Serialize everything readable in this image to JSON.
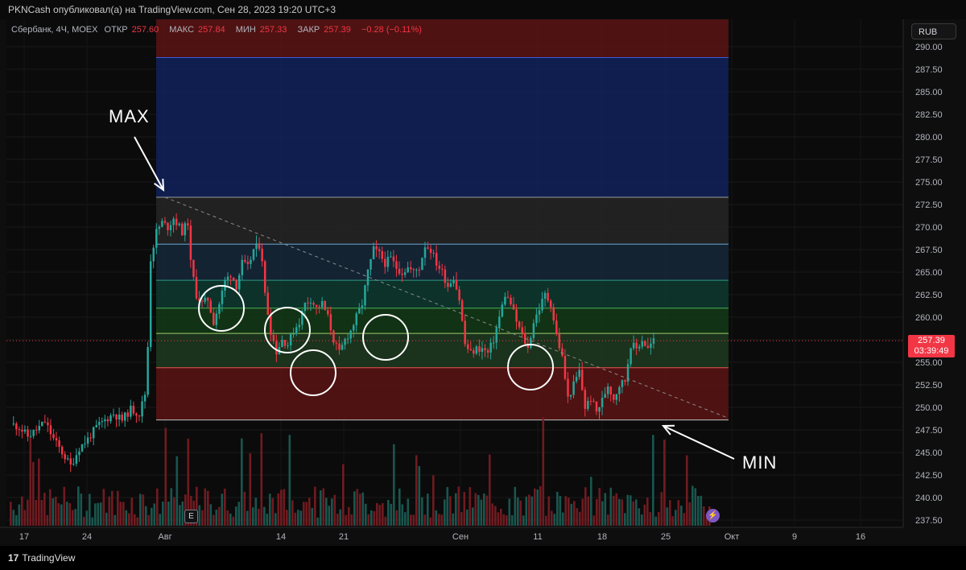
{
  "header": {
    "publisher_line": "PKNCash опубликовал(а) на TradingView.com, Сен 28, 2023 19:20 UTC+3"
  },
  "legend": {
    "symbol_line": "Сбербанк, 4Ч, MOEX",
    "open_label": "ОТКР",
    "open_value": "257.60",
    "high_label": "МАКС",
    "high_value": "257.84",
    "low_label": "МИН",
    "low_value": "257.33",
    "close_label": "ЗАКР",
    "close_value": "257.39",
    "change": "−0.28 (−0.11%)"
  },
  "price_axis": {
    "currency": "RUB",
    "last_price": "257.39",
    "countdown": "03:39:49"
  },
  "time_axis_badges": {
    "earnings": "E",
    "bolt": "⚡"
  },
  "annotations": {
    "max_label": "MAX",
    "min_label": "MIN"
  },
  "footer": {
    "brand": "TradingView",
    "logo_mark": "17"
  },
  "colors": {
    "up": "#26a69a",
    "down": "#f23645",
    "zone_top": "#5a1414",
    "zone_blue": "#10225a",
    "zone_gray": "#262626",
    "zone_steel": "#16283a",
    "zone_teal": "#0d3a30",
    "zone_green": "#143a18",
    "zone_olive": "#1e3a20",
    "zone_red": "#5a1414"
  },
  "chart_data": {
    "type": "candlestick",
    "symbol": "Сбербанк",
    "timeframe": "4Ч",
    "exchange": "MOEX",
    "y_ticks": [
      "290.00",
      "287.50",
      "285.00",
      "282.50",
      "280.00",
      "277.50",
      "275.00",
      "272.50",
      "270.00",
      "267.50",
      "265.00",
      "262.50",
      "260.00",
      "257.50",
      "255.00",
      "252.50",
      "250.00",
      "247.50",
      "245.00",
      "242.50",
      "240.00",
      "237.50"
    ],
    "ylim": [
      236.5,
      291.5
    ],
    "x_ticks": [
      "17",
      "24",
      "Авг",
      "14",
      "21",
      "Сен",
      "11",
      "18",
      "25",
      "Окт",
      "9",
      "16"
    ],
    "fib_levels": [
      288.8,
      273.3,
      268.1,
      264.1,
      261.0,
      258.2,
      254.4,
      248.6
    ],
    "max_price": 273.3,
    "min_price": 248.6,
    "close_path": [
      [
        0,
        248.2
      ],
      [
        3,
        247.8
      ],
      [
        6,
        246.8
      ],
      [
        9,
        247.5
      ],
      [
        12,
        248.4
      ],
      [
        15,
        246.5
      ],
      [
        18,
        245.0
      ],
      [
        21,
        243.5
      ],
      [
        24,
        245.5
      ],
      [
        27,
        246.5
      ],
      [
        30,
        247.8
      ],
      [
        33,
        248.6
      ],
      [
        36,
        249.3
      ],
      [
        39,
        248.6
      ],
      [
        42,
        249.8
      ],
      [
        45,
        249.3
      ],
      [
        47,
        251.5
      ],
      [
        48,
        256.8
      ],
      [
        49,
        266.5
      ],
      [
        51,
        269.5
      ],
      [
        53,
        270.5
      ],
      [
        55,
        270.0
      ],
      [
        57,
        271.0
      ],
      [
        60,
        269.5
      ],
      [
        62,
        270.5
      ],
      [
        63,
        266.0
      ],
      [
        65,
        262.5
      ],
      [
        67,
        261.5
      ],
      [
        69,
        262.0
      ],
      [
        71,
        259.5
      ],
      [
        73,
        261.5
      ],
      [
        75,
        264.0
      ],
      [
        77,
        264.8
      ],
      [
        79,
        263.5
      ],
      [
        81,
        266.0
      ],
      [
        83,
        265.5
      ],
      [
        85,
        267.5
      ],
      [
        87,
        268.0
      ],
      [
        88,
        266.5
      ],
      [
        89,
        262.5
      ],
      [
        91,
        258.5
      ],
      [
        93,
        256.2
      ],
      [
        95,
        257.5
      ],
      [
        97,
        257.0
      ],
      [
        99,
        258.5
      ],
      [
        101,
        259.5
      ],
      [
        103,
        261.5
      ],
      [
        105,
        262.0
      ],
      [
        107,
        261.0
      ],
      [
        109,
        261.5
      ],
      [
        111,
        260.0
      ],
      [
        113,
        257.5
      ],
      [
        115,
        256.0
      ],
      [
        117,
        257.5
      ],
      [
        119,
        258.5
      ],
      [
        121,
        260.0
      ],
      [
        123,
        261.5
      ],
      [
        125,
        265.0
      ],
      [
        127,
        267.5
      ],
      [
        129,
        267.0
      ],
      [
        131,
        266.0
      ],
      [
        133,
        266.5
      ],
      [
        135,
        265.5
      ],
      [
        137,
        265.0
      ],
      [
        139,
        265.5
      ],
      [
        141,
        265.0
      ],
      [
        143,
        265.5
      ],
      [
        145,
        268.0
      ],
      [
        147,
        267.5
      ],
      [
        149,
        266.0
      ],
      [
        151,
        265.0
      ],
      [
        153,
        263.5
      ],
      [
        155,
        264.5
      ],
      [
        157,
        262.0
      ],
      [
        159,
        257.0
      ],
      [
        161,
        256.0
      ],
      [
        163,
        256.5
      ],
      [
        165,
        256.5
      ],
      [
        167,
        256.0
      ],
      [
        169,
        257.5
      ],
      [
        171,
        260.0
      ],
      [
        173,
        262.5
      ],
      [
        175,
        261.5
      ],
      [
        177,
        259.5
      ],
      [
        179,
        258.0
      ],
      [
        181,
        256.5
      ],
      [
        183,
        259.5
      ],
      [
        185,
        261.0
      ],
      [
        187,
        262.5
      ],
      [
        189,
        261.5
      ],
      [
        191,
        258.0
      ],
      [
        193,
        255.5
      ],
      [
        195,
        251.0
      ],
      [
        197,
        252.5
      ],
      [
        199,
        254.0
      ],
      [
        201,
        250.0
      ],
      [
        203,
        251.0
      ],
      [
        205,
        249.5
      ],
      [
        207,
        250.8
      ],
      [
        209,
        252.5
      ],
      [
        211,
        251.0
      ],
      [
        213,
        252.5
      ],
      [
        215,
        253.0
      ],
      [
        217,
        257.0
      ],
      [
        219,
        256.5
      ],
      [
        221,
        257.5
      ],
      [
        223,
        256.5
      ],
      [
        225,
        257.4
      ]
    ]
  }
}
